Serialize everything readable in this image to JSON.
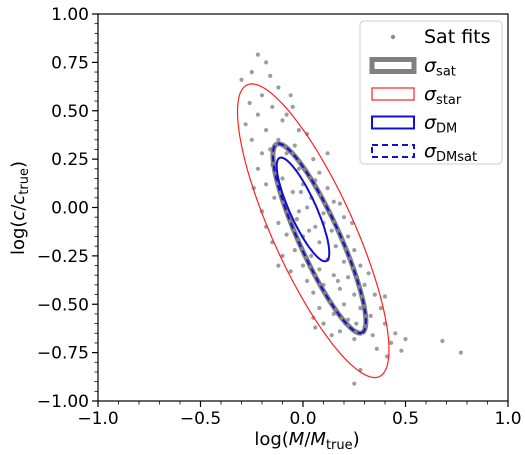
{
  "chart_data": {
    "type": "scatter",
    "title": "",
    "xlabel": {
      "main": "log(",
      "italic": "M",
      "slash": "/",
      "italic2": "M",
      "sub": "true",
      "close": ")"
    },
    "ylabel": {
      "main": "log(",
      "italic": "c",
      "slash": "/",
      "italic2": "c",
      "sub": "true",
      "close": ")"
    },
    "xlim": [
      -1.0,
      1.0
    ],
    "ylim": [
      -1.0,
      1.0
    ],
    "x_ticks": [
      -1.0,
      -0.5,
      0.0,
      0.5,
      1.0
    ],
    "x_tick_labels": [
      "−1.0",
      "−0.5",
      "0.0",
      "0.5",
      "1.0"
    ],
    "y_ticks": [
      -1.0,
      -0.75,
      -0.5,
      -0.25,
      0.0,
      0.25,
      0.5,
      0.75,
      1.0
    ],
    "y_tick_labels": [
      "−1.00",
      "−0.75",
      "−0.50",
      "−0.25",
      "0.00",
      "0.25",
      "0.50",
      "0.75",
      "1.00"
    ],
    "grid": false,
    "legend_position": "top-right",
    "colors": {
      "points": "#8c8c8c",
      "sat": "#808080",
      "star": "#ff2020",
      "dm": "#1010d0",
      "dmsat": "#1010d0"
    },
    "series": [
      {
        "name": "Sat fits",
        "kind": "points",
        "points": [
          [
            -0.22,
            0.79
          ],
          [
            -0.18,
            0.75
          ],
          [
            -0.25,
            0.7
          ],
          [
            -0.12,
            0.62
          ],
          [
            -0.2,
            0.58
          ],
          [
            -0.3,
            0.66
          ],
          [
            -0.05,
            0.52
          ],
          [
            -0.15,
            0.52
          ],
          [
            -0.22,
            0.48
          ],
          [
            -0.28,
            0.43
          ],
          [
            -0.1,
            0.45
          ],
          [
            -0.02,
            0.4
          ],
          [
            -0.18,
            0.4
          ],
          [
            -0.25,
            0.35
          ],
          [
            -0.12,
            0.35
          ],
          [
            -0.04,
            0.32
          ],
          [
            -0.2,
            0.28
          ],
          [
            -0.08,
            0.28
          ],
          [
            0.05,
            0.25
          ],
          [
            -0.15,
            0.22
          ],
          [
            -0.22,
            0.2
          ],
          [
            -0.02,
            0.2
          ],
          [
            0.08,
            0.18
          ],
          [
            -0.1,
            0.15
          ],
          [
            -0.18,
            0.12
          ],
          [
            0.0,
            0.12
          ],
          [
            0.12,
            0.1
          ],
          [
            -0.05,
            0.08
          ],
          [
            -0.14,
            0.05
          ],
          [
            0.04,
            0.05
          ],
          [
            0.15,
            0.03
          ],
          [
            -0.08,
            0.0
          ],
          [
            0.02,
            0.0
          ],
          [
            -0.2,
            -0.02
          ],
          [
            0.1,
            -0.03
          ],
          [
            0.2,
            -0.05
          ],
          [
            -0.03,
            -0.06
          ],
          [
            -0.12,
            -0.08
          ],
          [
            0.06,
            -0.1
          ],
          [
            0.14,
            -0.12
          ],
          [
            -0.08,
            -0.14
          ],
          [
            0.0,
            -0.15
          ],
          [
            0.22,
            -0.15
          ],
          [
            -0.15,
            -0.18
          ],
          [
            0.08,
            -0.18
          ],
          [
            0.16,
            -0.2
          ],
          [
            -0.04,
            -0.22
          ],
          [
            0.04,
            -0.25
          ],
          [
            0.25,
            -0.22
          ],
          [
            -0.1,
            -0.25
          ],
          [
            0.12,
            -0.27
          ],
          [
            0.2,
            -0.28
          ],
          [
            0.0,
            -0.3
          ],
          [
            0.08,
            -0.32
          ],
          [
            0.28,
            -0.3
          ],
          [
            -0.06,
            -0.33
          ],
          [
            0.15,
            -0.35
          ],
          [
            0.22,
            -0.36
          ],
          [
            0.02,
            -0.38
          ],
          [
            0.1,
            -0.4
          ],
          [
            0.3,
            -0.4
          ],
          [
            0.18,
            -0.42
          ],
          [
            0.05,
            -0.44
          ],
          [
            0.25,
            -0.45
          ],
          [
            0.12,
            -0.47
          ],
          [
            0.35,
            -0.45
          ],
          [
            0.2,
            -0.5
          ],
          [
            0.08,
            -0.52
          ],
          [
            0.28,
            -0.52
          ],
          [
            0.15,
            -0.55
          ],
          [
            0.33,
            -0.56
          ],
          [
            0.22,
            -0.58
          ],
          [
            0.1,
            -0.6
          ],
          [
            0.3,
            -0.62
          ],
          [
            0.18,
            -0.64
          ],
          [
            0.25,
            -0.68
          ],
          [
            0.05,
            -0.57
          ],
          [
            0.38,
            -0.52
          ],
          [
            0.4,
            -0.6
          ],
          [
            0.45,
            -0.65
          ],
          [
            0.43,
            -0.7
          ],
          [
            0.5,
            -0.68
          ],
          [
            0.48,
            -0.74
          ],
          [
            0.41,
            -0.77
          ],
          [
            0.36,
            -0.73
          ],
          [
            0.68,
            -0.69
          ],
          [
            0.77,
            -0.75
          ],
          [
            0.28,
            -0.84
          ],
          [
            0.25,
            -0.91
          ],
          [
            -0.16,
            0.68
          ],
          [
            -0.26,
            0.54
          ],
          [
            -0.08,
            0.48
          ],
          [
            0.02,
            0.38
          ],
          [
            -0.16,
            0.3
          ],
          [
            0.06,
            0.14
          ],
          [
            -0.02,
            -0.02
          ],
          [
            0.18,
            0.02
          ],
          [
            -0.18,
            -0.1
          ],
          [
            0.24,
            -0.08
          ],
          [
            -0.12,
            -0.3
          ],
          [
            0.06,
            -0.62
          ],
          [
            0.14,
            -0.66
          ],
          [
            0.34,
            -0.66
          ],
          [
            0.4,
            -0.46
          ],
          [
            0.32,
            -0.34
          ],
          [
            -0.24,
            0.1
          ],
          [
            0.12,
            0.28
          ],
          [
            -0.06,
            0.58
          ],
          [
            0.1,
            -0.08
          ],
          [
            -0.01,
            0.08
          ],
          [
            0.03,
            -0.12
          ],
          [
            0.17,
            -0.38
          ],
          [
            0.26,
            -0.6
          ]
        ]
      },
      {
        "name": "σ",
        "sub": "sat",
        "kind": "ellipse",
        "center": [
          0.08,
          -0.16
        ],
        "semi_major": 0.53,
        "semi_minor": 0.1,
        "angle_deg": -67,
        "style": "thick-gray"
      },
      {
        "name": "σ",
        "sub": "star",
        "kind": "ellipse",
        "center": [
          0.05,
          -0.12
        ],
        "semi_major": 0.82,
        "semi_minor": 0.2,
        "angle_deg": -67,
        "style": "thin-red"
      },
      {
        "name": "σ",
        "sub": "DM",
        "kind": "ellipse",
        "center": [
          0.0,
          -0.01
        ],
        "semi_major": 0.29,
        "semi_minor": 0.065,
        "angle_deg": -67,
        "style": "solid-blue"
      },
      {
        "name": "σ",
        "sub": "DMsat",
        "kind": "ellipse",
        "center": [
          0.08,
          -0.16
        ],
        "semi_major": 0.53,
        "semi_minor": 0.1,
        "angle_deg": -67,
        "style": "dashed-blue"
      }
    ]
  }
}
